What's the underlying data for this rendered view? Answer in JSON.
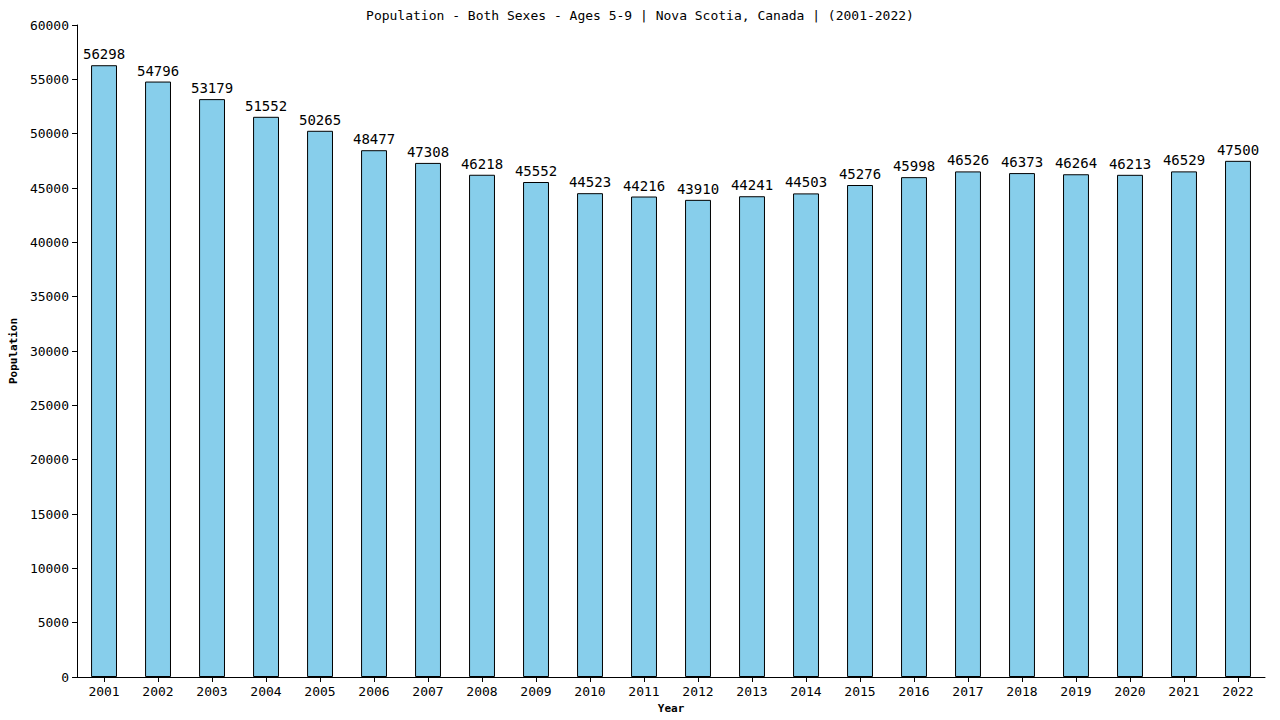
{
  "chart_data": {
    "type": "bar",
    "title": "Population - Both Sexes - Ages 5-9 | Nova Scotia, Canada | (2001-2022)",
    "x_label": "Year",
    "y_label": "Population",
    "categories": [
      "2001",
      "2002",
      "2003",
      "2004",
      "2005",
      "2006",
      "2007",
      "2008",
      "2009",
      "2010",
      "2011",
      "2012",
      "2013",
      "2014",
      "2015",
      "2016",
      "2017",
      "2018",
      "2019",
      "2020",
      "2021",
      "2022"
    ],
    "values": [
      56298,
      54796,
      53179,
      51552,
      50265,
      48477,
      47308,
      46218,
      45552,
      44523,
      44216,
      43910,
      44241,
      44503,
      45276,
      45998,
      46526,
      46373,
      46264,
      46213,
      46529,
      47500
    ],
    "color": "#87ceeb",
    "ylim": [
      0,
      60000
    ],
    "yticks": [
      0,
      5000,
      10000,
      15000,
      20000,
      25000,
      30000,
      35000,
      40000,
      45000,
      50000,
      55000,
      60000
    ],
    "grid": false,
    "data_labels": true
  }
}
